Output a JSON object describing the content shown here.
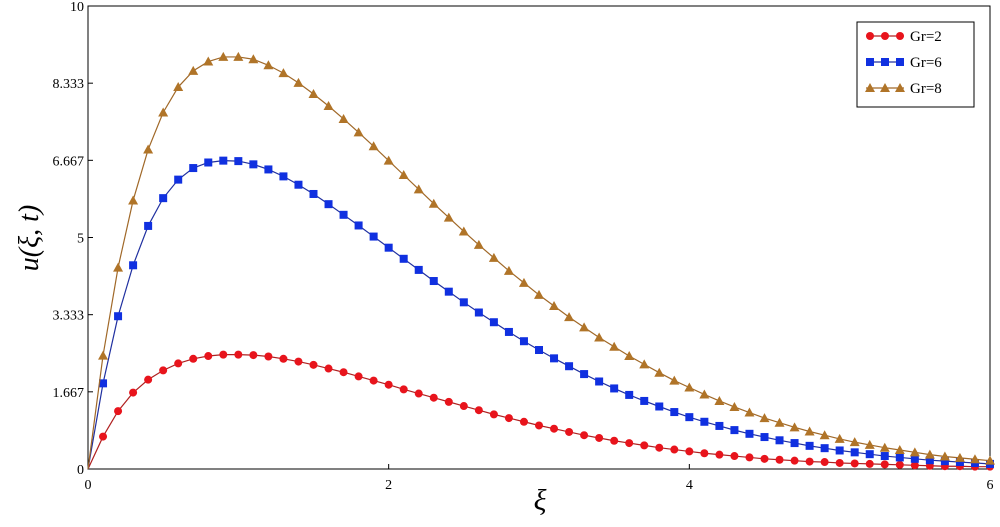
{
  "chart_data": {
    "type": "line",
    "xlabel": "ξ",
    "ylabel": "u(ξ, t)",
    "xlim": [
      0,
      6
    ],
    "ylim": [
      0,
      10
    ],
    "x_ticks": [
      0,
      2,
      4,
      6
    ],
    "x_tick_labels": [
      "0",
      "2",
      "4",
      "6"
    ],
    "y_ticks": [
      0,
      1.667,
      3.333,
      5,
      6.667,
      8.333,
      10
    ],
    "y_tick_labels": [
      "0",
      "1.667",
      "3.333",
      "5",
      "6.667",
      "8.333",
      "10"
    ],
    "grid": false,
    "legend_position": "top-right",
    "series": [
      {
        "name": "Gr=2",
        "color": "#e8141c",
        "line_color": "#b02020",
        "marker": "circle",
        "x": [
          0,
          0.1,
          0.2,
          0.3,
          0.4,
          0.5,
          0.6,
          0.7,
          0.8,
          0.9,
          1.0,
          1.1,
          1.2,
          1.3,
          1.4,
          1.5,
          1.6,
          1.7,
          1.8,
          1.9,
          2.0,
          2.1,
          2.2,
          2.3,
          2.4,
          2.5,
          2.6,
          2.7,
          2.8,
          2.9,
          3.0,
          3.1,
          3.2,
          3.3,
          3.4,
          3.5,
          3.6,
          3.7,
          3.8,
          3.9,
          4.0,
          4.1,
          4.2,
          4.3,
          4.4,
          4.5,
          4.6,
          4.7,
          4.8,
          4.9,
          5.0,
          5.1,
          5.2,
          5.3,
          5.4,
          5.5,
          5.6,
          5.7,
          5.8,
          5.9,
          6.0
        ],
        "y": [
          0,
          0.7,
          1.25,
          1.65,
          1.93,
          2.13,
          2.28,
          2.38,
          2.44,
          2.47,
          2.47,
          2.46,
          2.43,
          2.38,
          2.32,
          2.25,
          2.17,
          2.09,
          2.0,
          1.91,
          1.82,
          1.72,
          1.63,
          1.54,
          1.45,
          1.36,
          1.27,
          1.18,
          1.1,
          1.02,
          0.94,
          0.87,
          0.8,
          0.73,
          0.67,
          0.61,
          0.56,
          0.51,
          0.46,
          0.42,
          0.38,
          0.34,
          0.31,
          0.28,
          0.25,
          0.22,
          0.2,
          0.18,
          0.16,
          0.15,
          0.13,
          0.12,
          0.11,
          0.1,
          0.09,
          0.08,
          0.07,
          0.06,
          0.06,
          0.05,
          0.05
        ]
      },
      {
        "name": "Gr=6",
        "color": "#1030e0",
        "line_color": "#2030a0",
        "marker": "square",
        "x": [
          0,
          0.1,
          0.2,
          0.3,
          0.4,
          0.5,
          0.6,
          0.7,
          0.8,
          0.9,
          1.0,
          1.1,
          1.2,
          1.3,
          1.4,
          1.5,
          1.6,
          1.7,
          1.8,
          1.9,
          2.0,
          2.1,
          2.2,
          2.3,
          2.4,
          2.5,
          2.6,
          2.7,
          2.8,
          2.9,
          3.0,
          3.1,
          3.2,
          3.3,
          3.4,
          3.5,
          3.6,
          3.7,
          3.8,
          3.9,
          4.0,
          4.1,
          4.2,
          4.3,
          4.4,
          4.5,
          4.6,
          4.7,
          4.8,
          4.9,
          5.0,
          5.1,
          5.2,
          5.3,
          5.4,
          5.5,
          5.6,
          5.7,
          5.8,
          5.9,
          6.0
        ],
        "y": [
          0,
          1.85,
          3.3,
          4.4,
          5.25,
          5.85,
          6.25,
          6.5,
          6.62,
          6.66,
          6.65,
          6.58,
          6.47,
          6.32,
          6.14,
          5.94,
          5.72,
          5.49,
          5.26,
          5.02,
          4.78,
          4.54,
          4.3,
          4.06,
          3.83,
          3.6,
          3.38,
          3.17,
          2.96,
          2.76,
          2.57,
          2.39,
          2.22,
          2.05,
          1.89,
          1.74,
          1.6,
          1.47,
          1.35,
          1.23,
          1.12,
          1.02,
          0.93,
          0.84,
          0.76,
          0.69,
          0.62,
          0.56,
          0.5,
          0.45,
          0.4,
          0.36,
          0.32,
          0.28,
          0.25,
          0.22,
          0.19,
          0.17,
          0.15,
          0.13,
          0.11
        ]
      },
      {
        "name": "Gr=8",
        "color": "#b07428",
        "line_color": "#a06828",
        "marker": "triangle",
        "x": [
          0,
          0.1,
          0.2,
          0.3,
          0.4,
          0.5,
          0.6,
          0.7,
          0.8,
          0.9,
          1.0,
          1.1,
          1.2,
          1.3,
          1.4,
          1.5,
          1.6,
          1.7,
          1.8,
          1.9,
          2.0,
          2.1,
          2.2,
          2.3,
          2.4,
          2.5,
          2.6,
          2.7,
          2.8,
          2.9,
          3.0,
          3.1,
          3.2,
          3.3,
          3.4,
          3.5,
          3.6,
          3.7,
          3.8,
          3.9,
          4.0,
          4.1,
          4.2,
          4.3,
          4.4,
          4.5,
          4.6,
          4.7,
          4.8,
          4.9,
          5.0,
          5.1,
          5.2,
          5.3,
          5.4,
          5.5,
          5.6,
          5.7,
          5.8,
          5.9,
          6.0
        ],
        "y": [
          0,
          2.45,
          4.35,
          5.8,
          6.9,
          7.7,
          8.25,
          8.6,
          8.8,
          8.9,
          8.9,
          8.85,
          8.72,
          8.55,
          8.34,
          8.1,
          7.84,
          7.56,
          7.27,
          6.97,
          6.66,
          6.35,
          6.04,
          5.73,
          5.43,
          5.13,
          4.84,
          4.56,
          4.28,
          4.02,
          3.76,
          3.52,
          3.28,
          3.06,
          2.84,
          2.64,
          2.44,
          2.26,
          2.08,
          1.91,
          1.76,
          1.61,
          1.47,
          1.34,
          1.22,
          1.1,
          1.0,
          0.9,
          0.81,
          0.73,
          0.65,
          0.58,
          0.52,
          0.46,
          0.41,
          0.36,
          0.31,
          0.27,
          0.24,
          0.21,
          0.18
        ]
      }
    ]
  }
}
